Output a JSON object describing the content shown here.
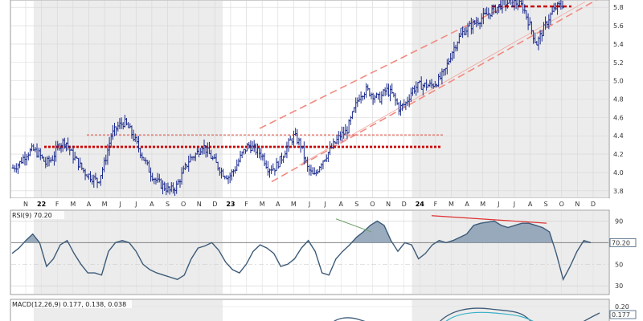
{
  "chart_data": [
    {
      "type": "ohlc",
      "x_ticks": [
        "N",
        "22",
        "F",
        "M",
        "A",
        "M",
        "J",
        "J",
        "A",
        "S",
        "O",
        "N",
        "D",
        "23",
        "F",
        "M",
        "A",
        "M",
        "J",
        "J",
        "A",
        "S",
        "O",
        "N",
        "D",
        "24",
        "F",
        "M",
        "A",
        "M",
        "J",
        "J",
        "A",
        "S",
        "O",
        "N",
        "D"
      ],
      "y_ticks": [
        "3.8",
        "4.0",
        "4.2",
        "4.4",
        "4.6",
        "4.8",
        "5.0",
        "5.2",
        "5.4",
        "5.6",
        "5.8"
      ],
      "ylim": [
        3.72,
        5.88
      ],
      "grid": true,
      "close": [
        4.05,
        4.1,
        4.2,
        4.25,
        4.2,
        4.1,
        4.15,
        4.3,
        4.35,
        4.2,
        4.1,
        4.0,
        3.95,
        3.9,
        4.1,
        4.4,
        4.5,
        4.55,
        4.45,
        4.3,
        4.15,
        4.0,
        3.9,
        3.85,
        3.8,
        3.85,
        4.0,
        4.15,
        4.2,
        4.3,
        4.2,
        4.1,
        4.0,
        3.95,
        4.05,
        4.2,
        4.3,
        4.25,
        4.2,
        4.05,
        4.05,
        4.15,
        4.3,
        4.4,
        4.3,
        4.05,
        3.95,
        4.1,
        4.2,
        4.3,
        4.4,
        4.45,
        4.65,
        4.85,
        4.9,
        4.85,
        4.8,
        4.9,
        4.85,
        4.7,
        4.75,
        4.9,
        4.95,
        4.95,
        4.95,
        5.0,
        5.1,
        5.3,
        5.45,
        5.55,
        5.6,
        5.65,
        5.7,
        5.75,
        5.8,
        5.85,
        5.85,
        5.85,
        5.8,
        5.6,
        5.4,
        5.55,
        5.7,
        5.8,
        5.83
      ]
    },
    {
      "type": "line",
      "name": "RSI(9) 70.20",
      "y_ticks": [
        "30",
        "50",
        "70",
        "90"
      ],
      "ylim": [
        22,
        100
      ],
      "last_value": "70.20",
      "values": [
        60,
        65,
        72,
        78,
        70,
        48,
        55,
        68,
        72,
        60,
        50,
        42,
        42,
        40,
        62,
        70,
        72,
        70,
        62,
        50,
        45,
        42,
        40,
        38,
        36,
        40,
        55,
        65,
        67,
        70,
        63,
        52,
        45,
        42,
        50,
        62,
        68,
        65,
        60,
        48,
        50,
        55,
        65,
        72,
        62,
        42,
        40,
        55,
        62,
        68,
        75,
        80,
        86,
        90,
        86,
        72,
        62,
        70,
        68,
        55,
        60,
        68,
        72,
        70,
        72,
        75,
        78,
        86,
        88,
        89,
        90,
        86,
        84,
        86,
        88,
        88,
        86,
        84,
        80,
        60,
        36,
        48,
        62,
        72,
        70
      ]
    },
    {
      "type": "line",
      "name": "MACD(12,26,9) 0.177, 0.138, 0.038",
      "y_ticks": [
        "0.20"
      ],
      "last_value": "0.177"
    }
  ]
}
